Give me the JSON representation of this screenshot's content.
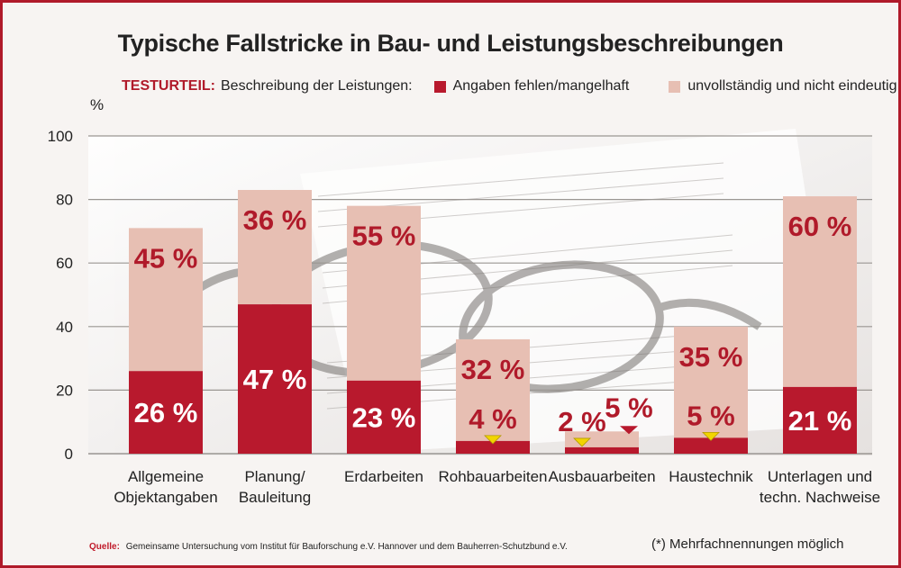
{
  "title": "Typische Fallstricke in Bau- und Leistungsbeschreibungen",
  "legend": {
    "label": "TESTURTEIL:",
    "intro": "Beschreibung der Leistungen:"
  },
  "footnote": "(*) Mehrfachnennungen möglich",
  "source": {
    "label": "Quelle:",
    "text": "Gemeinsame Untersuchung vom Institut für Bauforschung e.V. Hannover und dem Bauherren-Schutzbund e.V."
  },
  "colors": {
    "dark": "#b8192d",
    "light": "#e7bfb3",
    "accent": "#b01a2a",
    "marker": "#f2d500"
  },
  "chart_data": {
    "type": "bar",
    "stacked": true,
    "ylabel": "%",
    "ylim": [
      0,
      100
    ],
    "yticks": [
      0,
      20,
      40,
      60,
      80,
      100
    ],
    "grid": true,
    "legend_position": "top",
    "categories": [
      [
        "Allgemeine",
        "Objektangaben"
      ],
      [
        "Planung/",
        "Bauleitung"
      ],
      [
        "Erdarbeiten"
      ],
      [
        "Rohbauarbeiten"
      ],
      [
        "Ausbauarbeiten"
      ],
      [
        "Haustechnik"
      ],
      [
        "Unterlagen und",
        "techn. Nachweise"
      ]
    ],
    "series": [
      {
        "name": "Angaben fehlen/mangelhaft",
        "values": [
          26,
          47,
          23,
          4,
          2,
          5,
          21
        ],
        "labels": [
          "26 %",
          "47 %",
          "23 %",
          "4 %",
          "2 %",
          "5 %",
          "21 %"
        ]
      },
      {
        "name": "unvollständig und nicht eindeutig",
        "values": [
          45,
          36,
          55,
          32,
          5,
          35,
          60
        ],
        "labels": [
          "45 %",
          "36 %",
          "55 %",
          "32 %",
          "5 %",
          "35 %",
          "60 %"
        ]
      }
    ]
  }
}
